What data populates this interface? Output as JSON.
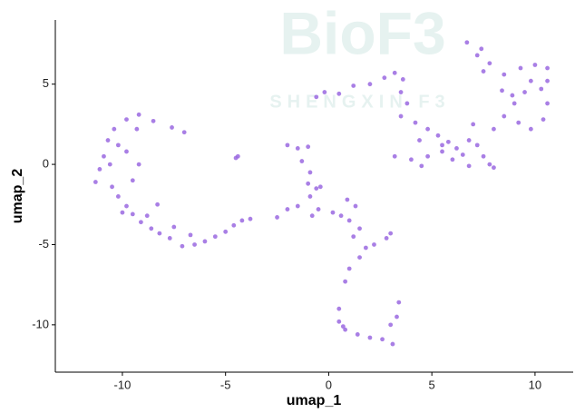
{
  "chart_data": {
    "type": "scatter",
    "xlabel": "umap_1",
    "ylabel": "umap_2",
    "watermark": "BioF3",
    "watermark_subtitle": "SHENGXIN F3",
    "color": "#9a68e0",
    "xlim": [
      -13.25,
      11.85
    ],
    "ylim": [
      -12.95,
      9.0
    ],
    "xticks": [
      -10,
      -5,
      0,
      5,
      10
    ],
    "yticks": [
      -10,
      -5,
      0,
      5
    ],
    "x": [
      -9.8,
      -9.2,
      -8.5,
      -7.6,
      -7,
      -10.4,
      -10.7,
      -10.2,
      -10.9,
      -11.1,
      -10.6,
      -11.3,
      -10.5,
      -10.2,
      -9.8,
      -9.5,
      -9.1,
      -8.6,
      -8.2,
      -7.7,
      -7.1,
      -6.5,
      -6,
      -5.5,
      -5,
      -4.6,
      -4.2,
      -3.8,
      -9.5,
      -9.8,
      -10,
      -8.8,
      -7.5,
      -6.7,
      -9.3,
      -8.3,
      -9.2,
      -4.5,
      -4.4,
      -2,
      -1.5,
      -1,
      -1.3,
      -0.9,
      -1,
      -0.6,
      -0.9,
      -1.5,
      -2,
      -2.5,
      -0.8,
      -0.5,
      0.2,
      0.6,
      0.9,
      1,
      1.5,
      1.2,
      1.8,
      1.5,
      1,
      0.8,
      2.2,
      2.8,
      3,
      -0.4,
      1.3,
      0.5,
      0.5,
      0.8,
      1.4,
      2,
      2.6,
      3.1,
      3,
      3.3,
      3.4,
      0.7,
      -0.6,
      -0.2,
      0.5,
      1.2,
      2,
      2.7,
      3.2,
      3.6,
      3.5,
      3.8,
      3.5,
      4.2,
      4.8,
      5.3,
      5.8,
      6.2,
      6.5,
      6,
      5.5,
      6.8,
      7.2,
      7.5,
      7.8,
      4.8,
      4,
      3.2,
      4.5,
      8,
      6.8,
      7,
      8,
      8.5,
      9,
      9.5,
      9.8,
      10.3,
      10.6,
      10.4,
      9.8,
      9.2,
      8.4,
      8.5,
      9.3,
      10,
      10.6,
      7.8,
      7.2,
      6.7,
      7.4,
      7.5,
      10.6,
      8.9,
      5.5,
      4.4
    ],
    "y": [
      2.8,
      3.1,
      2.7,
      2.3,
      2,
      2.2,
      1.5,
      1.2,
      0.5,
      -0.3,
      0,
      -1.1,
      -1.4,
      -2,
      -2.6,
      -3.1,
      -3.6,
      -4,
      -4.3,
      -4.6,
      -5.1,
      -5,
      -4.8,
      -4.5,
      -4.2,
      -3.8,
      -3.5,
      -3.4,
      -1,
      0.8,
      -3,
      -3.2,
      -3.9,
      -4.4,
      2.2,
      -2.5,
      0,
      0.4,
      0.5,
      1.2,
      1,
      1.1,
      0.2,
      -0.5,
      -1.2,
      -1.5,
      -2,
      -2.6,
      -2.8,
      -3.3,
      -3.2,
      -2.8,
      -3,
      -3.2,
      -2.2,
      -3.5,
      -4,
      -4.5,
      -5.2,
      -5.8,
      -6.5,
      -7.3,
      -5,
      -4.6,
      -4.3,
      -1.4,
      -2.6,
      -9,
      -9.8,
      -10.3,
      -10.6,
      -10.8,
      -10.9,
      -11.2,
      -10,
      -9.5,
      -8.6,
      -10.1,
      4.2,
      4.5,
      4.4,
      4.9,
      5,
      5.4,
      5.7,
      5.3,
      4.5,
      3.8,
      3,
      2.6,
      2.2,
      1.8,
      1.4,
      1,
      0.6,
      0.3,
      0.8,
      1.5,
      1.2,
      0.5,
      0,
      0.5,
      0.3,
      0.5,
      -0.1,
      -0.2,
      -0.1,
      2.5,
      2.2,
      3,
      3.8,
      4.5,
      5.2,
      4.7,
      3.8,
      2.8,
      2.2,
      2.6,
      4.6,
      5.6,
      6,
      6.2,
      6,
      6.3,
      6.8,
      7.6,
      7.2,
      5.8,
      5.2,
      4.3,
      1.2,
      1.5
    ]
  }
}
